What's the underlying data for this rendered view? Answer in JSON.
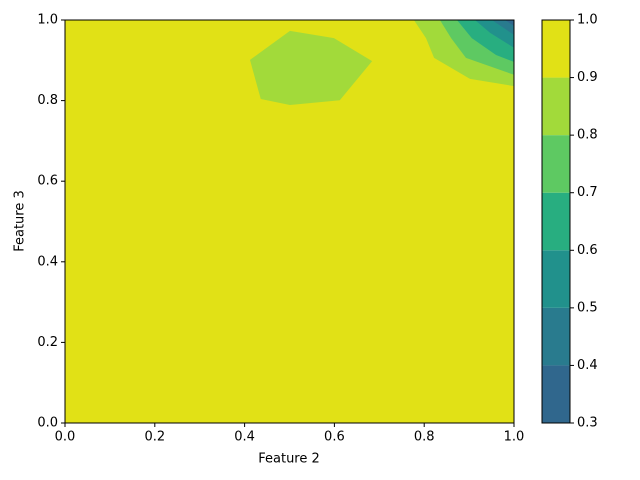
{
  "chart_data": {
    "type": "contour",
    "xlabel": "Feature 2",
    "ylabel": "Feature 3",
    "xlim": [
      0,
      1
    ],
    "ylim": [
      0,
      1
    ],
    "xticks": [
      {
        "value": 0,
        "label": "0.0"
      },
      0.2,
      0.4,
      0.6,
      0.8,
      {
        "value": 1,
        "label": "1.0"
      }
    ],
    "yticks": [
      {
        "value": 0,
        "label": "0.0"
      },
      0.2,
      0.4,
      0.6,
      0.8,
      {
        "value": 1,
        "label": "1.0"
      }
    ],
    "levels": [
      0.3,
      0.4,
      0.5,
      0.6,
      0.7,
      0.8,
      0.9,
      1.0
    ],
    "level_colors": [
      "#30678d",
      "#297b8e",
      "#21918c",
      "#28ae80",
      "#5ec962",
      "#a2da3a",
      "#e1e116"
    ],
    "colorbar_ticks": [
      0.3,
      0.4,
      0.5,
      0.6,
      0.7,
      0.8,
      0.9,
      {
        "value": 1,
        "label": "1.0"
      }
    ],
    "regions": [
      {
        "low": 0.9,
        "x": [
          0,
          1,
          1,
          0
        ],
        "y": [
          0,
          0,
          1,
          1
        ]
      },
      {
        "low": 0.8,
        "x": [
          0.412,
          0.501,
          0.599,
          0.684,
          0.612,
          0.501,
          0.436
        ],
        "y": [
          0.901,
          0.973,
          0.955,
          0.898,
          0.801,
          0.789,
          0.804
        ]
      },
      {
        "low": 0.8,
        "x": [
          0.777,
          0.804,
          0.822,
          0.902,
          1,
          1
        ],
        "y": [
          1,
          0.955,
          0.906,
          0.854,
          0.836,
          1
        ]
      },
      {
        "low": 0.7,
        "x": [
          0.835,
          0.86,
          0.893,
          1,
          1
        ],
        "y": [
          1,
          0.955,
          0.906,
          0.864,
          1
        ]
      },
      {
        "low": 0.6,
        "x": [
          0.873,
          0.906,
          0.96,
          1,
          1
        ],
        "y": [
          1,
          0.955,
          0.913,
          0.896,
          1
        ]
      },
      {
        "low": 0.5,
        "x": [
          0.913,
          0.947,
          1,
          1
        ],
        "y": [
          1,
          0.968,
          0.931,
          1
        ]
      },
      {
        "low": 0.4,
        "x": [
          0.951,
          1,
          1
        ],
        "y": [
          1,
          0.963,
          1
        ]
      },
      {
        "low": 0.3,
        "x": [
          0.98,
          1,
          1
        ],
        "y": [
          1,
          0.985,
          1
        ]
      }
    ]
  }
}
